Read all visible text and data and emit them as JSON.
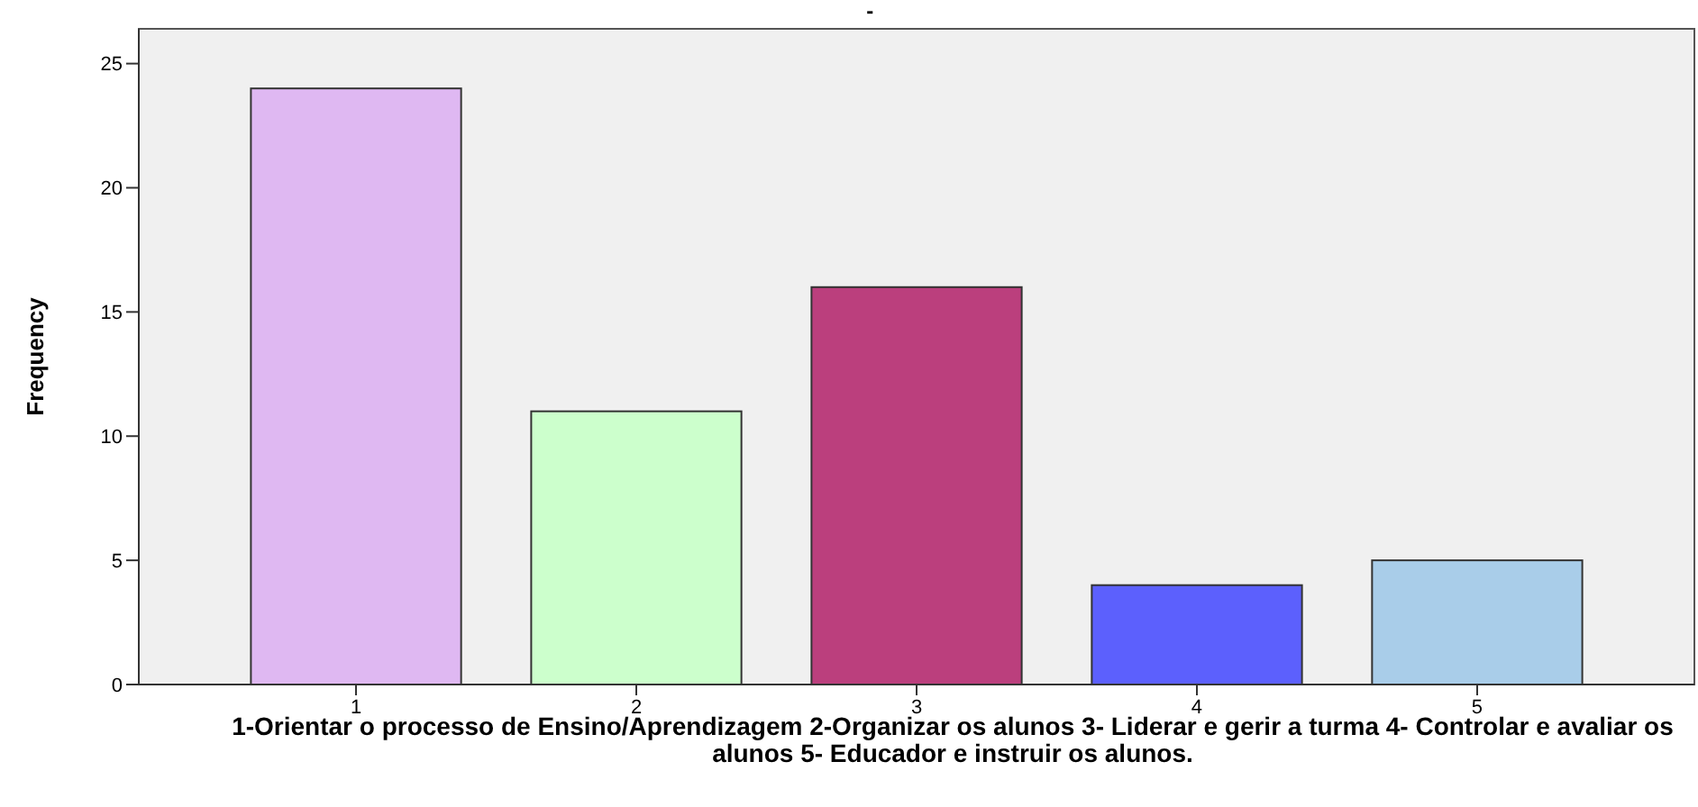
{
  "chart_data": {
    "type": "bar",
    "title": "-",
    "categories": [
      "1",
      "2",
      "3",
      "4",
      "5"
    ],
    "values": [
      24,
      11,
      16,
      4,
      5
    ],
    "colors": [
      "#dfb8f2",
      "#ccffcc",
      "#bb3f7d",
      "#5c60fd",
      "#a9cde9"
    ],
    "ylim": [
      0,
      26.4
    ],
    "yticks": [
      0,
      5,
      10,
      15,
      20,
      25
    ],
    "grid": false,
    "ylabel": "Frequency",
    "xlabel": "1-Orientar o processo de Ensino/Aprendizagem 2-Organizar os alunos  3- Liderar  e gerir a turma 4- Controlar e avaliar os alunos 5- Educador e instruir os alunos."
  }
}
